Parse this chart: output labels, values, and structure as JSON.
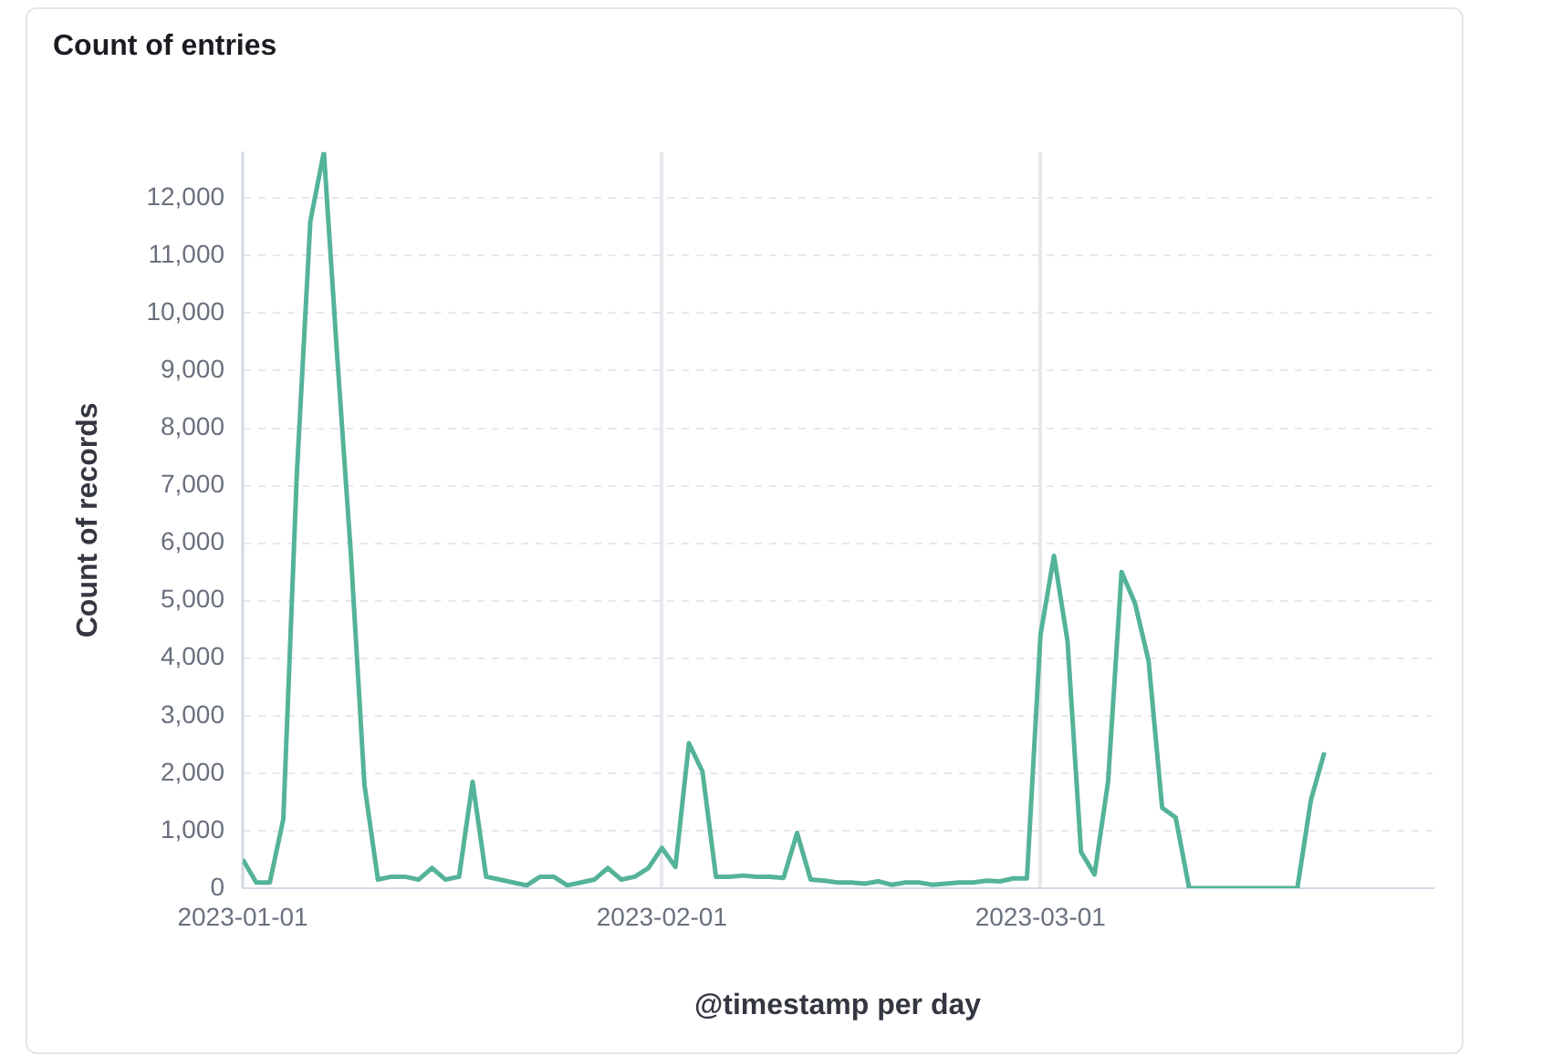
{
  "chart_data": {
    "type": "line",
    "title": "Count of entries",
    "xlabel": "@timestamp per day",
    "ylabel": "Count of records",
    "x": [
      "2023-01-01",
      "2023-01-02",
      "2023-01-03",
      "2023-01-04",
      "2023-01-05",
      "2023-01-06",
      "2023-01-07",
      "2023-01-08",
      "2023-01-09",
      "2023-01-10",
      "2023-01-11",
      "2023-01-12",
      "2023-01-13",
      "2023-01-14",
      "2023-01-15",
      "2023-01-16",
      "2023-01-17",
      "2023-01-18",
      "2023-01-19",
      "2023-01-20",
      "2023-01-21",
      "2023-01-22",
      "2023-01-23",
      "2023-01-24",
      "2023-01-25",
      "2023-01-26",
      "2023-01-27",
      "2023-01-28",
      "2023-01-29",
      "2023-01-30",
      "2023-01-31",
      "2023-02-01",
      "2023-02-02",
      "2023-02-03",
      "2023-02-04",
      "2023-02-05",
      "2023-02-06",
      "2023-02-07",
      "2023-02-08",
      "2023-02-09",
      "2023-02-10",
      "2023-02-11",
      "2023-02-12",
      "2023-02-13",
      "2023-02-14",
      "2023-02-15",
      "2023-02-16",
      "2023-02-17",
      "2023-02-18",
      "2023-02-19",
      "2023-02-20",
      "2023-02-21",
      "2023-02-22",
      "2023-02-23",
      "2023-02-24",
      "2023-02-25",
      "2023-02-26",
      "2023-02-27",
      "2023-02-28",
      "2023-03-01",
      "2023-03-02",
      "2023-03-03",
      "2023-03-04",
      "2023-03-05",
      "2023-03-06",
      "2023-03-07",
      "2023-03-08",
      "2023-03-09",
      "2023-03-10",
      "2023-03-11",
      "2023-03-12",
      "2023-03-13",
      "2023-03-14",
      "2023-03-15",
      "2023-03-16",
      "2023-03-17",
      "2023-03-18",
      "2023-03-19",
      "2023-03-20",
      "2023-03-21",
      "2023-03-22"
    ],
    "series": [
      {
        "color": "#54b399",
        "values": [
          500,
          100,
          100,
          1200,
          7200,
          11600,
          12800,
          9200,
          5800,
          1800,
          150,
          200,
          200,
          150,
          350,
          150,
          200,
          1850,
          200,
          150,
          100,
          50,
          200,
          200,
          50,
          100,
          150,
          350,
          150,
          200,
          350,
          700,
          370,
          2520,
          2030,
          200,
          200,
          220,
          200,
          200,
          180,
          960,
          150,
          130,
          100,
          100,
          80,
          120,
          60,
          100,
          100,
          60,
          80,
          100,
          100,
          130,
          120,
          170,
          170,
          4400,
          5780,
          4300,
          630,
          240,
          1850,
          5500,
          4950,
          3950,
          1400,
          1230,
          0,
          0,
          0,
          0,
          0,
          0,
          0,
          0,
          0,
          1530,
          2360
        ]
      }
    ],
    "xlim": [
      "2023-01-01",
      "2023-03-30"
    ],
    "xticks": [
      "2023-01-01",
      "2023-02-01",
      "2023-03-01"
    ],
    "ylim": [
      0,
      12800
    ],
    "yticks": [
      {
        "value": 0,
        "label": "0"
      },
      {
        "value": 1000,
        "label": "1,000"
      },
      {
        "value": 2000,
        "label": "2,000"
      },
      {
        "value": 3000,
        "label": "3,000"
      },
      {
        "value": 4000,
        "label": "4,000"
      },
      {
        "value": 5000,
        "label": "5,000"
      },
      {
        "value": 6000,
        "label": "6,000"
      },
      {
        "value": 7000,
        "label": "7,000"
      },
      {
        "value": 8000,
        "label": "8,000"
      },
      {
        "value": 9000,
        "label": "9,000"
      },
      {
        "value": 10000,
        "label": "10,000"
      },
      {
        "value": 11000,
        "label": "11,000"
      },
      {
        "value": 12000,
        "label": "12,000"
      }
    ],
    "grid": true,
    "legend": false,
    "marker": "none",
    "line_style": "solid"
  }
}
